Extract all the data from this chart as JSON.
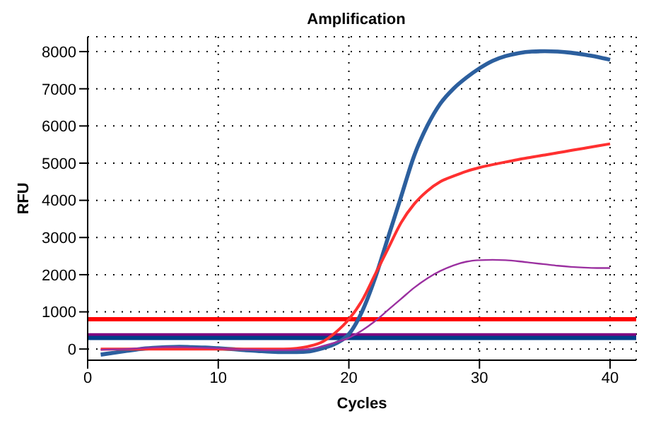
{
  "chart_data": {
    "type": "line",
    "title": "Amplification",
    "xlabel": "Cycles",
    "ylabel": "RFU",
    "x": [
      1,
      2,
      3,
      4,
      5,
      6,
      7,
      8,
      9,
      10,
      11,
      12,
      13,
      14,
      15,
      16,
      17,
      18,
      19,
      20,
      21,
      22,
      23,
      24,
      25,
      26,
      27,
      28,
      29,
      30,
      31,
      32,
      33,
      34,
      35,
      36,
      37,
      38,
      39,
      40
    ],
    "series": [
      {
        "color": "#2c5f9e",
        "values": [
          -150,
          -100,
          -50,
          0,
          30,
          50,
          60,
          50,
          40,
          20,
          0,
          -30,
          -50,
          -70,
          -80,
          -80,
          -60,
          20,
          150,
          400,
          1000,
          1900,
          3000,
          4100,
          5200,
          6000,
          6600,
          7000,
          7300,
          7550,
          7750,
          7880,
          7960,
          8000,
          8010,
          8000,
          7970,
          7920,
          7860,
          7780
        ]
      },
      {
        "color": "#ff3030",
        "values": [
          0,
          0,
          0,
          0,
          0,
          0,
          0,
          0,
          0,
          0,
          0,
          0,
          0,
          0,
          0,
          20,
          80,
          200,
          450,
          800,
          1300,
          2000,
          2700,
          3400,
          3900,
          4250,
          4500,
          4650,
          4780,
          4880,
          4960,
          5030,
          5100,
          5160,
          5220,
          5280,
          5340,
          5400,
          5460,
          5520
        ]
      },
      {
        "color": "#9b30a0",
        "values": [
          -20,
          -10,
          0,
          20,
          40,
          50,
          50,
          40,
          30,
          20,
          0,
          -10,
          -20,
          -30,
          -30,
          -20,
          0,
          80,
          180,
          300,
          500,
          750,
          1050,
          1350,
          1650,
          1900,
          2100,
          2250,
          2350,
          2390,
          2400,
          2390,
          2360,
          2320,
          2280,
          2240,
          2210,
          2190,
          2180,
          2180
        ]
      }
    ],
    "ref_lines": [
      {
        "axis": "y",
        "value": 800,
        "color": "#ff0000"
      },
      {
        "axis": "y",
        "value": 370,
        "color": "#800080"
      },
      {
        "axis": "y",
        "value": 300,
        "color": "#003f8a"
      }
    ],
    "xlim": [
      0,
      42
    ],
    "xticks": [
      0,
      10,
      20,
      30,
      40
    ],
    "ylim": [
      -300,
      8400
    ],
    "yticks": [
      0,
      1000,
      2000,
      3000,
      4000,
      5000,
      6000,
      7000,
      8000
    ],
    "grid": true,
    "legend": false,
    "marker": "none",
    "line_style": "solid"
  }
}
